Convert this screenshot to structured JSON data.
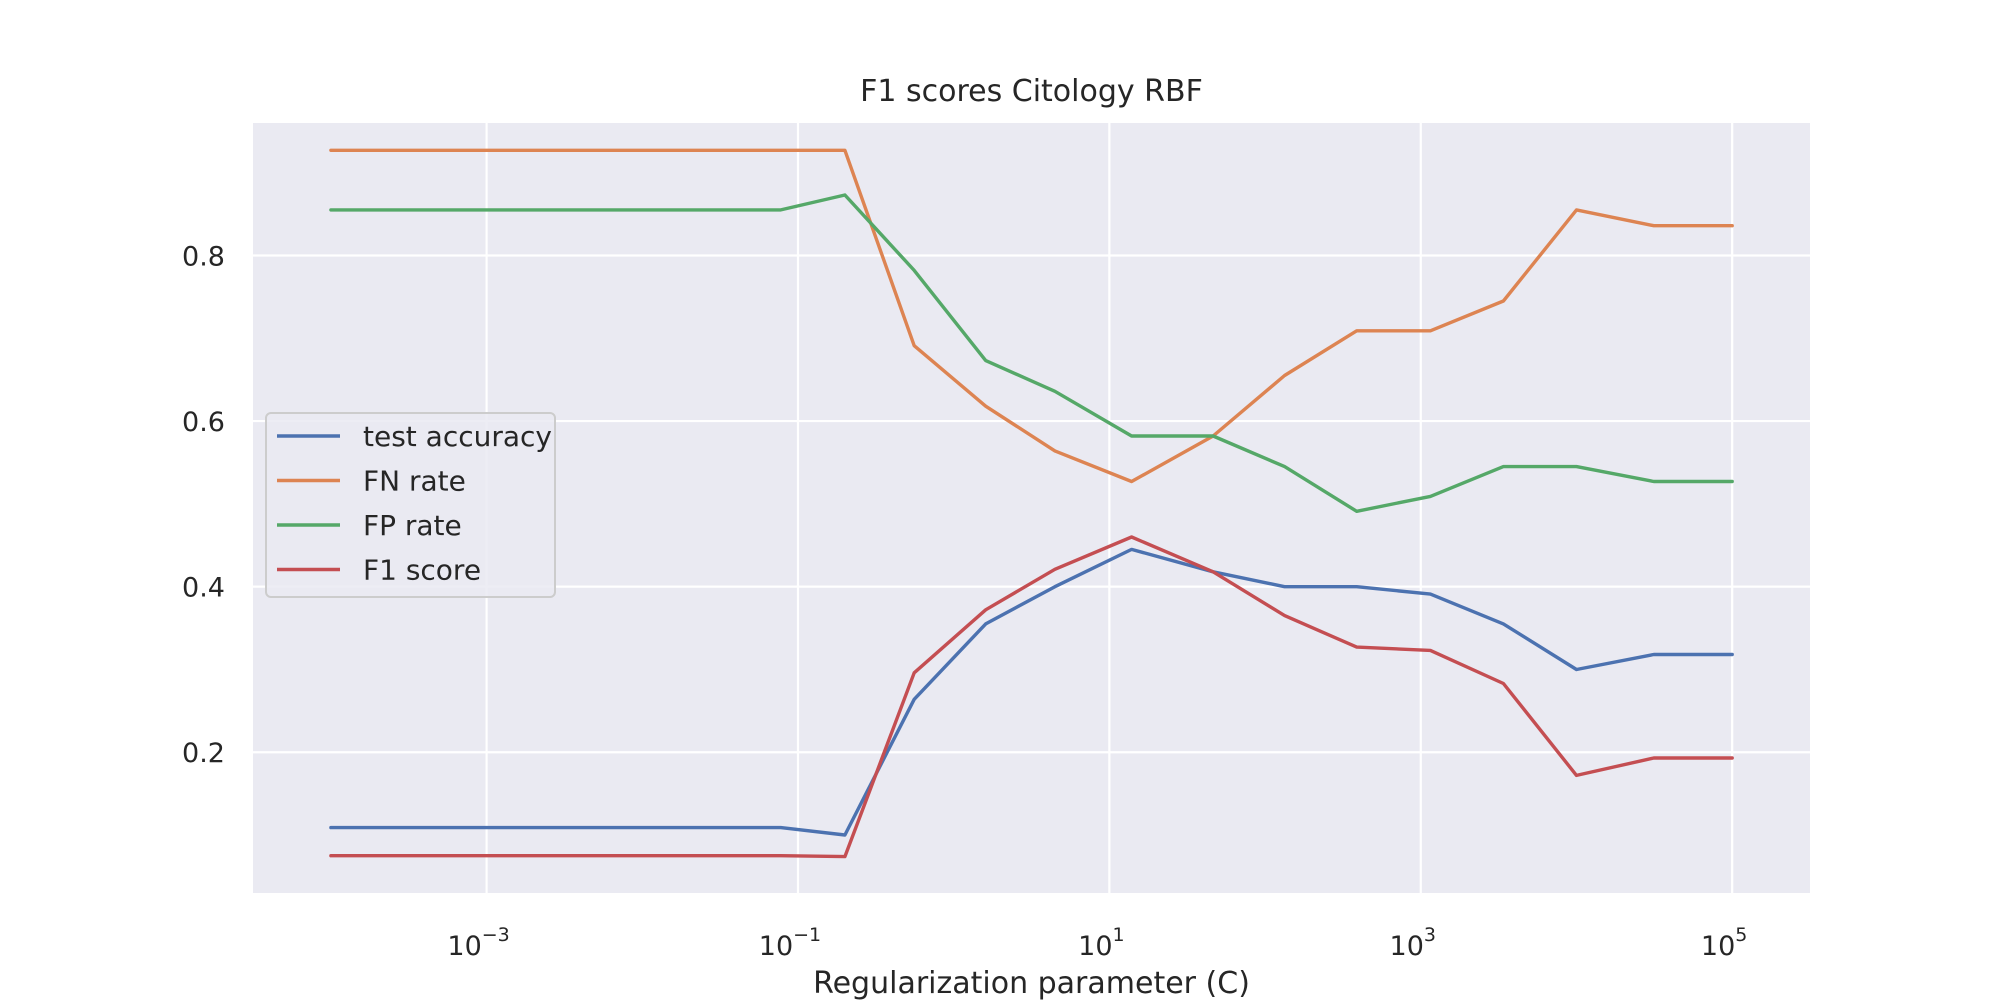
{
  "chart_data": {
    "type": "line",
    "title": "F1 scores Citology RBF",
    "xlabel": "Regularization parameter (C)",
    "ylabel": "",
    "xscale": "log",
    "xlim": [
      3.16e-05,
      316228
    ],
    "ylim": [
      0.03,
      0.96
    ],
    "grid": true,
    "legend_position": "center-left",
    "x_ticks": [
      {
        "value": 0.001,
        "base": "10",
        "exp": "−3"
      },
      {
        "value": 0.1,
        "base": "10",
        "exp": "−1"
      },
      {
        "value": 10,
        "base": "10",
        "exp": "1"
      },
      {
        "value": 1000,
        "base": "10",
        "exp": "3"
      },
      {
        "value": 100000,
        "base": "10",
        "exp": "5"
      }
    ],
    "y_ticks": [
      {
        "value": 0.2,
        "label": "0.2"
      },
      {
        "value": 0.4,
        "label": "0.4"
      },
      {
        "value": 0.6,
        "label": "0.6"
      },
      {
        "value": 0.8,
        "label": "0.8"
      }
    ],
    "x": [
      0.0001,
      0.0776,
      0.2,
      0.558,
      1.605,
      4.47,
      13.9,
      46.4,
      133.4,
      387.8,
      1154,
      3395,
      10000,
      31400,
      100000
    ],
    "series": [
      {
        "name": "test accuracy",
        "color": "#4c72b0",
        "values": [
          0.109,
          0.109,
          0.1,
          0.264,
          0.355,
          0.4,
          0.445,
          0.418,
          0.4,
          0.4,
          0.391,
          0.355,
          0.3,
          0.318,
          0.318
        ]
      },
      {
        "name": "FN rate",
        "color": "#dd8452",
        "values": [
          0.927,
          0.927,
          0.927,
          0.691,
          0.618,
          0.564,
          0.527,
          0.582,
          0.655,
          0.709,
          0.709,
          0.745,
          0.855,
          0.836,
          0.836
        ]
      },
      {
        "name": "FP rate",
        "color": "#55a868",
        "values": [
          0.855,
          0.855,
          0.873,
          0.782,
          0.673,
          0.636,
          0.582,
          0.582,
          0.545,
          0.491,
          0.509,
          0.545,
          0.545,
          0.527,
          0.527
        ]
      },
      {
        "name": "F1 score",
        "color": "#c44e52",
        "values": [
          0.075,
          0.075,
          0.074,
          0.296,
          0.372,
          0.421,
          0.46,
          0.418,
          0.365,
          0.327,
          0.323,
          0.283,
          0.172,
          0.193,
          0.193
        ]
      }
    ]
  },
  "colors": {
    "plot_background": "#eaeaf2",
    "grid": "#ffffff",
    "text": "#262626"
  }
}
